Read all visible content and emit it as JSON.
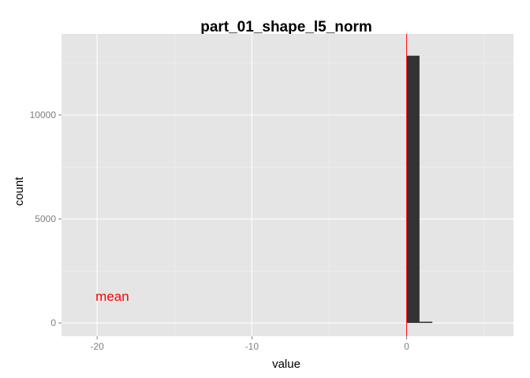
{
  "chart_data": {
    "type": "bar",
    "title": "part_01_shape_l5_norm",
    "xlabel": "value",
    "ylabel": "count",
    "xlim": [
      -22.3,
      6.9
    ],
    "ylim": [
      -640,
      13900
    ],
    "x_ticks": [
      -20,
      -10,
      0
    ],
    "x_tick_labels": [
      "-20",
      "-10",
      "0"
    ],
    "y_ticks": [
      0,
      5000,
      10000
    ],
    "y_tick_labels": [
      "0",
      "5000",
      "10000"
    ],
    "bins": [
      {
        "x0": 0.0,
        "x1": 0.83,
        "count": 12850
      },
      {
        "x0": 0.83,
        "x1": 1.66,
        "count": 60
      }
    ],
    "grid": true,
    "legend": "none",
    "reference_line": {
      "x": 0.0,
      "label": "mean",
      "label_x": -20.1,
      "label_y": 1300
    },
    "colors": {
      "panel_background": "#e5e5e5",
      "grid_major": "#ffffff",
      "grid_minor": "#f2f2f2",
      "bar_fill": "#333333",
      "reference_line": "#ff0000",
      "annotation": "#ff0000"
    }
  }
}
